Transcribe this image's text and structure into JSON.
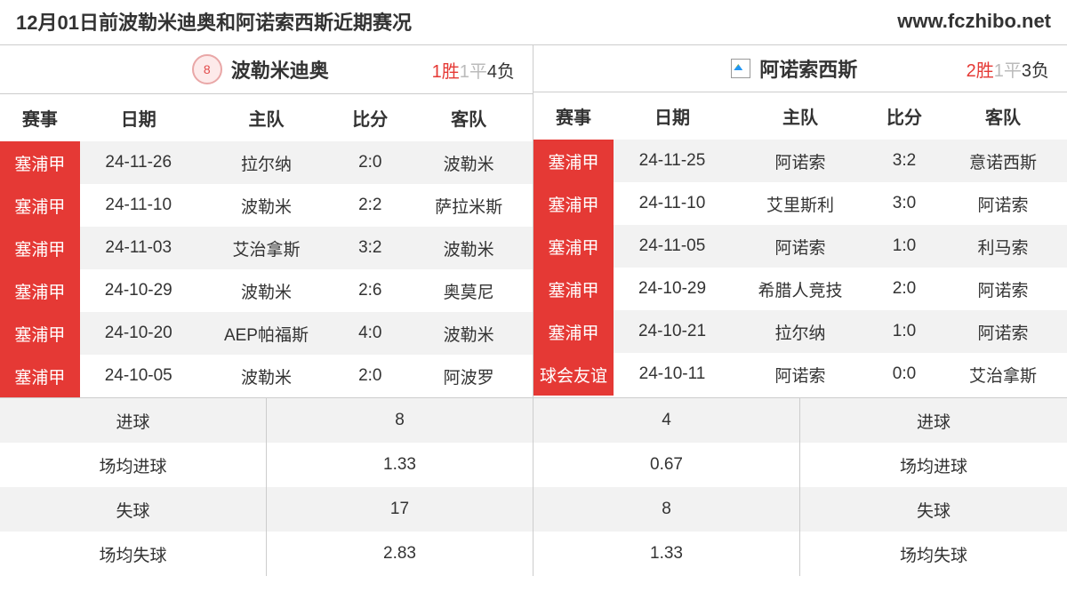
{
  "header": {
    "title": "12月01日前波勒米迪奥和阿诺索西斯近期赛况",
    "url": "www.fczhibo.net"
  },
  "colors": {
    "league_bg": "#e53935",
    "league_fg": "#ffffff",
    "row_even": "#f2f2f2",
    "row_odd": "#ffffff",
    "border": "#cccccc",
    "win": "#e53935",
    "draw": "#bbbbbb",
    "text": "#333333"
  },
  "columns": {
    "league": "赛事",
    "date": "日期",
    "home": "主队",
    "score": "比分",
    "away": "客队"
  },
  "left": {
    "team": "波勒米迪奥",
    "logo_text": "8",
    "record": {
      "win": "1胜",
      "draw": "1平",
      "loss": "4负"
    },
    "rows": [
      {
        "league": "塞浦甲",
        "date": "24-11-26",
        "home": "拉尔纳",
        "score": "2:0",
        "away": "波勒米"
      },
      {
        "league": "塞浦甲",
        "date": "24-11-10",
        "home": "波勒米",
        "score": "2:2",
        "away": "萨拉米斯"
      },
      {
        "league": "塞浦甲",
        "date": "24-11-03",
        "home": "艾治拿斯",
        "score": "3:2",
        "away": "波勒米"
      },
      {
        "league": "塞浦甲",
        "date": "24-10-29",
        "home": "波勒米",
        "score": "2:6",
        "away": "奥莫尼"
      },
      {
        "league": "塞浦甲",
        "date": "24-10-20",
        "home": "AEP帕福斯",
        "score": "4:0",
        "away": "波勒米"
      },
      {
        "league": "塞浦甲",
        "date": "24-10-05",
        "home": "波勒米",
        "score": "2:0",
        "away": "阿波罗"
      }
    ]
  },
  "right": {
    "team": "阿诺索西斯",
    "record": {
      "win": "2胜",
      "draw": "1平",
      "loss": "3负"
    },
    "rows": [
      {
        "league": "塞浦甲",
        "date": "24-11-25",
        "home": "阿诺索",
        "score": "3:2",
        "away": "意诺西斯"
      },
      {
        "league": "塞浦甲",
        "date": "24-11-10",
        "home": "艾里斯利",
        "score": "3:0",
        "away": "阿诺索"
      },
      {
        "league": "塞浦甲",
        "date": "24-11-05",
        "home": "阿诺索",
        "score": "1:0",
        "away": "利马索"
      },
      {
        "league": "塞浦甲",
        "date": "24-10-29",
        "home": "希腊人竞技",
        "score": "2:0",
        "away": "阿诺索"
      },
      {
        "league": "塞浦甲",
        "date": "24-10-21",
        "home": "拉尔纳",
        "score": "1:0",
        "away": "阿诺索"
      },
      {
        "league": "球会友谊",
        "date": "24-10-11",
        "home": "阿诺索",
        "score": "0:0",
        "away": "艾治拿斯"
      }
    ]
  },
  "stats": {
    "labels": {
      "goals": "进球",
      "avg_goals": "场均进球",
      "conceded": "失球",
      "avg_conceded": "场均失球"
    },
    "rows": [
      {
        "left_label": "进球",
        "left_val": "8",
        "right_val": "4",
        "right_label": "进球"
      },
      {
        "left_label": "场均进球",
        "left_val": "1.33",
        "right_val": "0.67",
        "right_label": "场均进球"
      },
      {
        "left_label": "失球",
        "left_val": "17",
        "right_val": "8",
        "right_label": "失球"
      },
      {
        "left_label": "场均失球",
        "left_val": "2.83",
        "right_val": "1.33",
        "right_label": "场均失球"
      }
    ]
  }
}
